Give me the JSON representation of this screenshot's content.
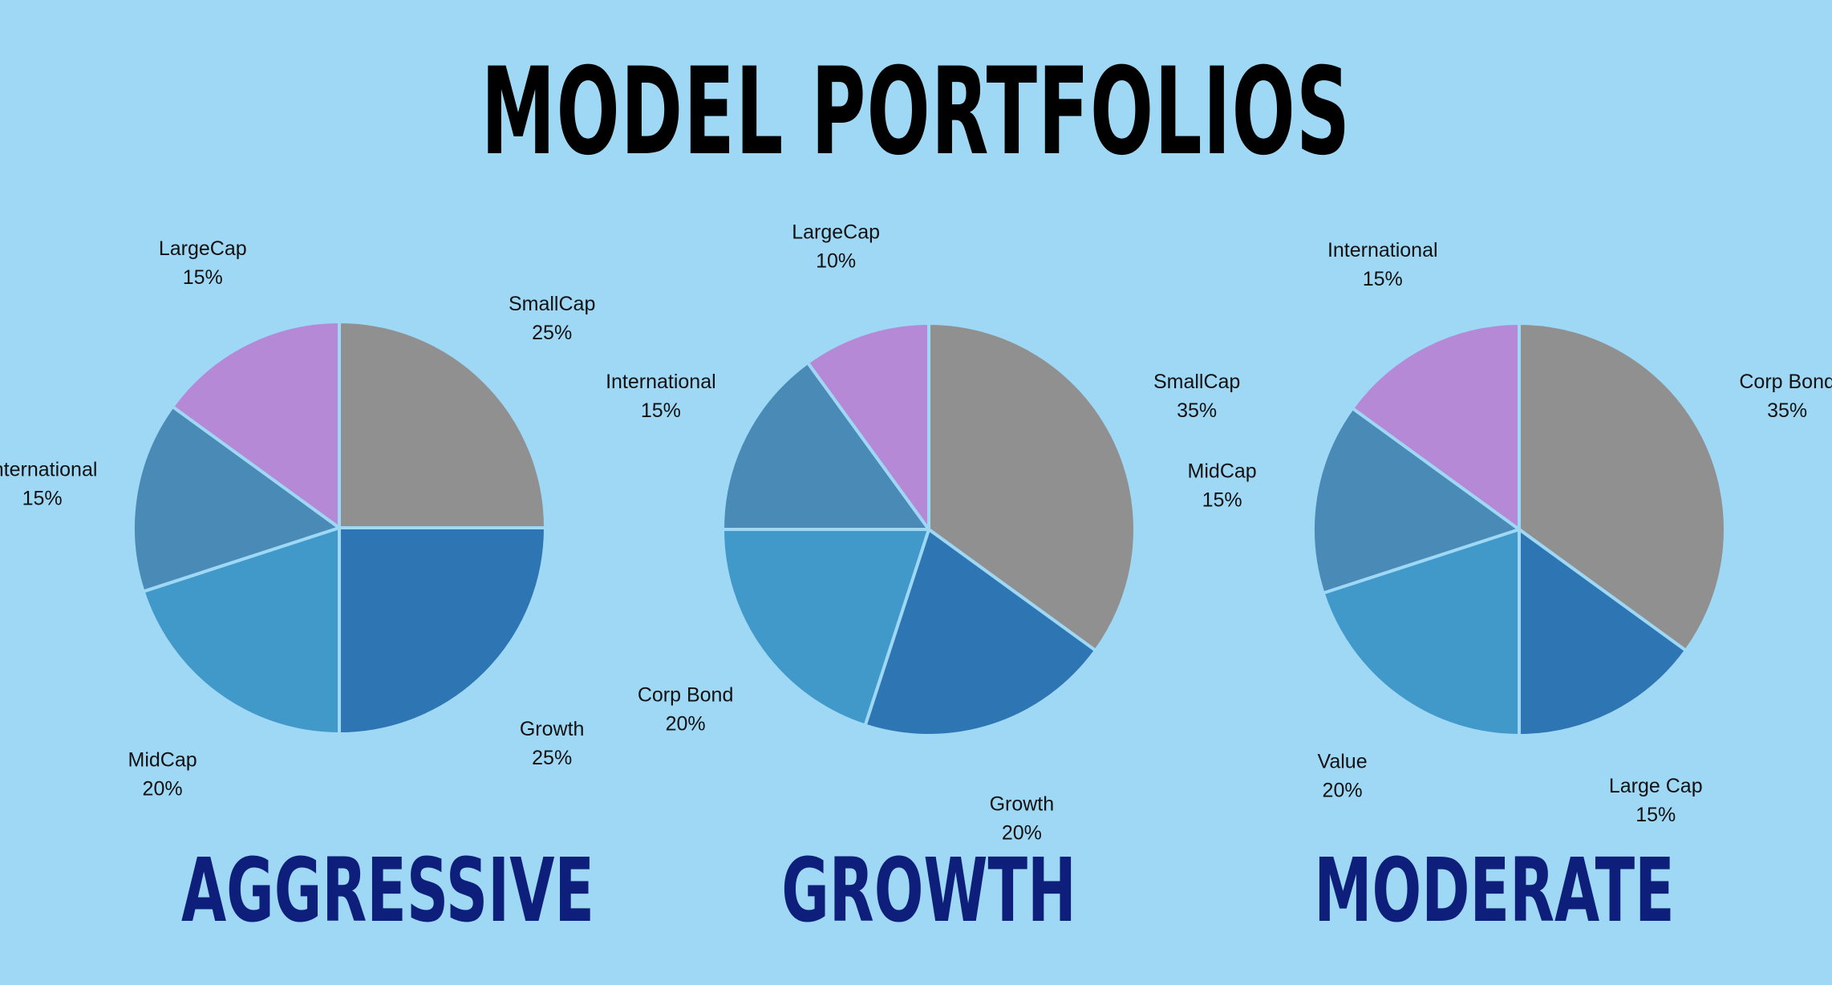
{
  "title": "MODEL PORTFOLIOS",
  "colors": {
    "gray": "#909090",
    "blue": "#2e75b4",
    "teal": "#4199c9",
    "steel": "#4a8ab6",
    "purple": "#b589d6",
    "separator": "#9fd8f5",
    "portfolio_name": "#0d1f7a"
  },
  "chart_data": [
    {
      "type": "pie",
      "title": "AGGRESSIVE",
      "slices": [
        {
          "label": "SmallCap",
          "value": 25,
          "display": "25%",
          "color": "#909090"
        },
        {
          "label": "Growth",
          "value": 25,
          "display": "25%",
          "color": "#2e75b4"
        },
        {
          "label": "MidCap",
          "value": 20,
          "display": "20%",
          "color": "#4199c9"
        },
        {
          "label": "International",
          "value": 15,
          "display": "15%",
          "color": "#4a8ab6"
        },
        {
          "label": "LargeCap",
          "value": 15,
          "display": "15%",
          "color": "#b589d6"
        }
      ]
    },
    {
      "type": "pie",
      "title": "GROWTH",
      "slices": [
        {
          "label": "SmallCap",
          "value": 35,
          "display": "35%",
          "color": "#909090"
        },
        {
          "label": "Growth",
          "value": 20,
          "display": "20%",
          "color": "#2e75b4"
        },
        {
          "label": "Corp Bond",
          "value": 20,
          "display": "20%",
          "color": "#4199c9"
        },
        {
          "label": "International",
          "value": 15,
          "display": "15%",
          "color": "#4a8ab6"
        },
        {
          "label": "LargeCap",
          "value": 10,
          "display": "10%",
          "color": "#b589d6"
        }
      ]
    },
    {
      "type": "pie",
      "title": "MODERATE",
      "slices": [
        {
          "label": "Corp Bond",
          "value": 35,
          "display": "35%",
          "color": "#909090"
        },
        {
          "label": "Large Cap",
          "value": 15,
          "display": "15%",
          "color": "#2e75b4"
        },
        {
          "label": "Value",
          "value": 20,
          "display": "20%",
          "color": "#4199c9"
        },
        {
          "label": "MidCap",
          "value": 15,
          "display": "15%",
          "color": "#4a8ab6"
        },
        {
          "label": "International",
          "value": 15,
          "display": "15%",
          "color": "#b589d6"
        }
      ]
    }
  ]
}
